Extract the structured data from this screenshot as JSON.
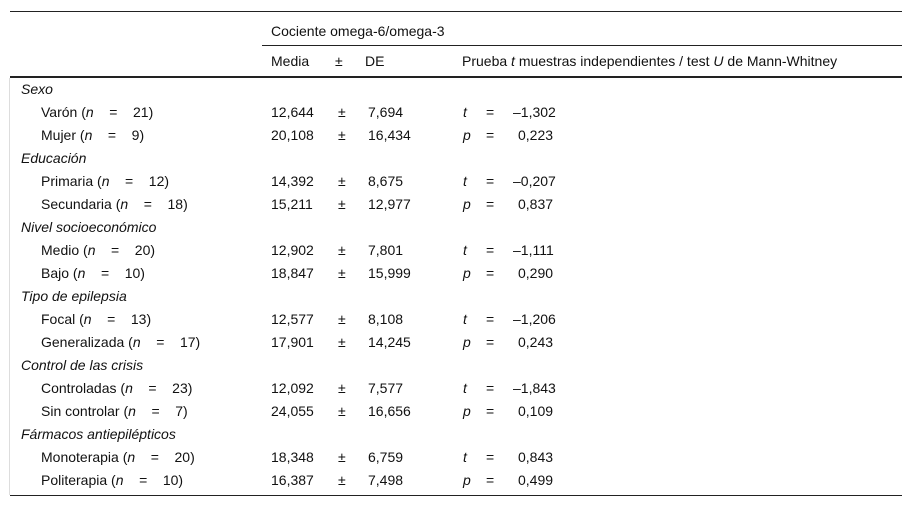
{
  "header": {
    "group_title": "Cociente omega-6/omega-3",
    "media": "Media",
    "pm": "±",
    "de": "DE",
    "test_prefix": "Prueba ",
    "test_t": "t",
    "test_mid": " muestras independientes / test ",
    "test_u": "U",
    "test_suffix": " de Mann-Whitney"
  },
  "groups": [
    {
      "name": "Sexo",
      "items": [
        {
          "label": "Varón",
          "n": "21",
          "mean": "12,644",
          "sd": "7,694",
          "stat": "t",
          "value": "–1,302"
        },
        {
          "label": "Mujer",
          "n": "9",
          "mean": "20,108",
          "sd": "16,434",
          "stat": "p",
          "value": "0,223"
        }
      ]
    },
    {
      "name": "Educación",
      "items": [
        {
          "label": "Primaria",
          "n": "12",
          "mean": "14,392",
          "sd": "8,675",
          "stat": "t",
          "value": "–0,207"
        },
        {
          "label": "Secundaria",
          "n": "18",
          "mean": "15,211",
          "sd": "12,977",
          "stat": "p",
          "value": "0,837"
        }
      ]
    },
    {
      "name": "Nivel socioeconómico",
      "items": [
        {
          "label": "Medio",
          "n": "20",
          "mean": "12,902",
          "sd": "7,801",
          "stat": "t",
          "value": "–1,111"
        },
        {
          "label": "Bajo",
          "n": "10",
          "mean": "18,847",
          "sd": "15,999",
          "stat": "p",
          "value": "0,290"
        }
      ]
    },
    {
      "name": "Tipo de epilepsia",
      "items": [
        {
          "label": "Focal",
          "n": "13",
          "mean": "12,577",
          "sd": "8,108",
          "stat": "t",
          "value": "–1,206"
        },
        {
          "label": "Generalizada",
          "n": "17",
          "mean": "17,901",
          "sd": "14,245",
          "stat": "p",
          "value": "0,243"
        }
      ]
    },
    {
      "name": "Control de las crisis",
      "items": [
        {
          "label": "Controladas",
          "n": "23",
          "mean": "12,092",
          "sd": "7,577",
          "stat": "t",
          "value": "–1,843"
        },
        {
          "label": "Sin controlar",
          "n": "7",
          "mean": "24,055",
          "sd": "16,656",
          "stat": "p",
          "value": "0,109"
        }
      ]
    },
    {
      "name": "Fármacos antiepilépticos",
      "items": [
        {
          "label": "Monoterapia",
          "n": "20",
          "mean": "18,348",
          "sd": "6,759",
          "stat": "t",
          "value": "0,843"
        },
        {
          "label": "Politerapia",
          "n": "10",
          "mean": "16,387",
          "sd": "7,498",
          "stat": "p",
          "value": "0,499"
        }
      ]
    }
  ]
}
